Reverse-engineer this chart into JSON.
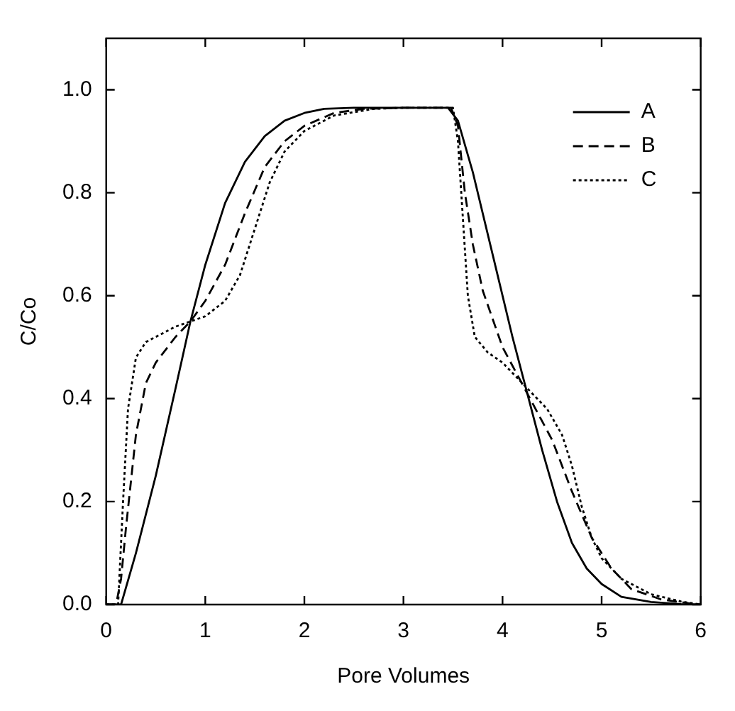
{
  "chart_data": {
    "type": "line",
    "xlabel": "Pore Volumes",
    "ylabel": "C/Co",
    "xlim": [
      0,
      6
    ],
    "xticks": [
      0,
      1,
      2,
      3,
      4,
      5,
      6
    ],
    "ylim": [
      0,
      1.1
    ],
    "yticks": [
      {
        "value": 0,
        "label": "0.0"
      },
      {
        "value": 0.2,
        "label": "0.2"
      },
      {
        "value": 0.4,
        "label": "0.4"
      },
      {
        "value": 0.6,
        "label": "0.6"
      },
      {
        "value": 0.8,
        "label": "0.8"
      },
      {
        "value": 1,
        "label": "1.0"
      }
    ],
    "grid": false,
    "legend": "top right",
    "marker": "none",
    "series": [
      {
        "name": "A",
        "color": "#000000",
        "line_style": "solid",
        "x": [
          0,
          0.15,
          0.3,
          0.5,
          0.7,
          0.85,
          1.0,
          1.2,
          1.4,
          1.6,
          1.8,
          2.0,
          2.2,
          2.5,
          3.0,
          3.45,
          3.55,
          3.7,
          3.9,
          4.1,
          4.25,
          4.4,
          4.55,
          4.7,
          4.85,
          5.0,
          5.2,
          5.5,
          5.8,
          6
        ],
        "values": [
          0,
          0,
          0.1,
          0.25,
          0.42,
          0.55,
          0.66,
          0.78,
          0.86,
          0.91,
          0.94,
          0.955,
          0.963,
          0.965,
          0.965,
          0.965,
          0.94,
          0.84,
          0.68,
          0.52,
          0.41,
          0.3,
          0.2,
          0.12,
          0.07,
          0.04,
          0.015,
          0.005,
          0.001,
          0
        ]
      },
      {
        "name": "B",
        "color": "#000000",
        "line_style": "dashed",
        "x": [
          0,
          0.1,
          0.15,
          0.2,
          0.3,
          0.4,
          0.5,
          0.7,
          0.85,
          1.0,
          1.2,
          1.4,
          1.6,
          1.8,
          2.0,
          2.3,
          2.6,
          3.0,
          3.48,
          3.55,
          3.62,
          3.7,
          3.8,
          4.0,
          4.25,
          4.5,
          4.7,
          4.9,
          5.1,
          5.3,
          5.6,
          5.9,
          6
        ],
        "values": [
          0,
          0,
          0.05,
          0.15,
          0.33,
          0.43,
          0.47,
          0.52,
          0.55,
          0.59,
          0.66,
          0.76,
          0.85,
          0.9,
          0.93,
          0.955,
          0.963,
          0.965,
          0.965,
          0.93,
          0.8,
          0.7,
          0.61,
          0.5,
          0.41,
          0.32,
          0.22,
          0.13,
          0.07,
          0.03,
          0.01,
          0.002,
          0
        ]
      },
      {
        "name": "C",
        "color": "#000000",
        "line_style": "dotted",
        "x": [
          0,
          0.12,
          0.17,
          0.22,
          0.3,
          0.4,
          0.5,
          0.7,
          0.85,
          1.0,
          1.2,
          1.35,
          1.5,
          1.65,
          1.8,
          2.0,
          2.3,
          2.7,
          3.0,
          3.5,
          3.55,
          3.6,
          3.65,
          3.72,
          3.85,
          4.0,
          4.25,
          4.45,
          4.6,
          4.7,
          4.8,
          4.9,
          5.0,
          5.2,
          5.5,
          5.8,
          6
        ],
        "values": [
          0,
          0,
          0.2,
          0.38,
          0.48,
          0.51,
          0.52,
          0.54,
          0.55,
          0.56,
          0.59,
          0.64,
          0.73,
          0.82,
          0.88,
          0.92,
          0.95,
          0.963,
          0.965,
          0.965,
          0.9,
          0.75,
          0.6,
          0.52,
          0.49,
          0.47,
          0.42,
          0.38,
          0.33,
          0.27,
          0.19,
          0.13,
          0.09,
          0.05,
          0.02,
          0.006,
          0
        ]
      }
    ]
  }
}
